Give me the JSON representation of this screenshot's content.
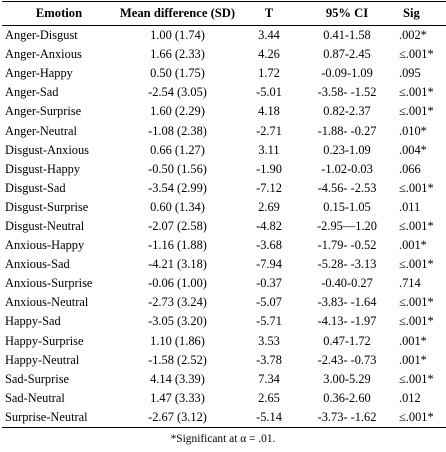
{
  "table": {
    "headers": {
      "emotion": "Emotion",
      "mean_difference": "Mean difference (SD)",
      "t": "T",
      "ci": "95% CI",
      "sig": "Sig"
    },
    "rows": [
      {
        "emotion": "Anger-Disgust",
        "mean_difference": "1.00 (1.74)",
        "t": "3.44",
        "ci": "0.41-1.58",
        "sig": ".002*"
      },
      {
        "emotion": "Anger-Anxious",
        "mean_difference": "1.66 (2.33)",
        "t": "4.26",
        "ci": "0.87-2.45",
        "sig": "≤.001*"
      },
      {
        "emotion": "Anger-Happy",
        "mean_difference": "0.50 (1.75)",
        "t": "1.72",
        "ci": "-0.09-1.09",
        "sig": ".095"
      },
      {
        "emotion": "Anger-Sad",
        "mean_difference": "-2.54 (3.05)",
        "t": "-5.01",
        "ci": "-3.58- -1.52",
        "sig": "≤.001*"
      },
      {
        "emotion": "Anger-Surprise",
        "mean_difference": "1.60 (2.29)",
        "t": "4.18",
        "ci": "0.82-2.37",
        "sig": "≤.001*"
      },
      {
        "emotion": "Anger-Neutral",
        "mean_difference": "-1.08 (2.38)",
        "t": "-2.71",
        "ci": "-1.88- -0.27",
        "sig": ".010*"
      },
      {
        "emotion": "Disgust-Anxious",
        "mean_difference": "0.66 (1.27)",
        "t": "3.11",
        "ci": "0.23-1.09",
        "sig": ".004*"
      },
      {
        "emotion": "Disgust-Happy",
        "mean_difference": "-0.50 (1.56)",
        "t": "-1.90",
        "ci": "-1.02-0.03",
        "sig": ".066"
      },
      {
        "emotion": "Disgust-Sad",
        "mean_difference": "-3.54 (2.99)",
        "t": "-7.12",
        "ci": "-4.56- -2.53",
        "sig": "≤.001*"
      },
      {
        "emotion": "Disgust-Surprise",
        "mean_difference": "0.60 (1.34)",
        "t": "2.69",
        "ci": "0.15-1.05",
        "sig": ".011"
      },
      {
        "emotion": "Disgust-Neutral",
        "mean_difference": "-2.07 (2.58)",
        "t": "-4.82",
        "ci": "-2.95—1.20",
        "sig": "≤.001*"
      },
      {
        "emotion": "Anxious-Happy",
        "mean_difference": "-1.16 (1.88)",
        "t": "-3.68",
        "ci": "-1.79- -0.52",
        "sig": ".001*"
      },
      {
        "emotion": "Anxious-Sad",
        "mean_difference": "-4.21 (3.18)",
        "t": "-7.94",
        "ci": "-5.28- -3.13",
        "sig": "≤.001*"
      },
      {
        "emotion": "Anxious-Surprise",
        "mean_difference": "-0.06 (1.00)",
        "t": "-0.37",
        "ci": "-0.40-0.27",
        "sig": ".714"
      },
      {
        "emotion": "Anxious-Neutral",
        "mean_difference": "-2.73 (3.24)",
        "t": "-5.07",
        "ci": "-3.83- -1.64",
        "sig": "≤.001*"
      },
      {
        "emotion": "Happy-Sad",
        "mean_difference": "-3.05 (3.20)",
        "t": "-5.71",
        "ci": "-4.13- -1.97",
        "sig": "≤.001*"
      },
      {
        "emotion": "Happy-Surprise",
        "mean_difference": "1.10 (1.86)",
        "t": "3.53",
        "ci": "0.47-1.72",
        "sig": ".001*"
      },
      {
        "emotion": "Happy-Neutral",
        "mean_difference": "-1.58 (2.52)",
        "t": "-3.78",
        "ci": "-2.43- -0.73",
        "sig": ".001*"
      },
      {
        "emotion": "Sad-Surprise",
        "mean_difference": "4.14 (3.39)",
        "t": "7.34",
        "ci": "3.00-5.29",
        "sig": "≤.001*"
      },
      {
        "emotion": "Sad-Neutral",
        "mean_difference": "1.47 (3.33)",
        "t": "2.65",
        "ci": "0.36-2.60",
        "sig": ".012"
      },
      {
        "emotion": "Surprise-Neutral",
        "mean_difference": "-2.67 (3.12)",
        "t": "-5.14",
        "ci": "-3.73- -1.62",
        "sig": "≤.001*"
      }
    ]
  },
  "footnote": "*Significant at α = .01."
}
